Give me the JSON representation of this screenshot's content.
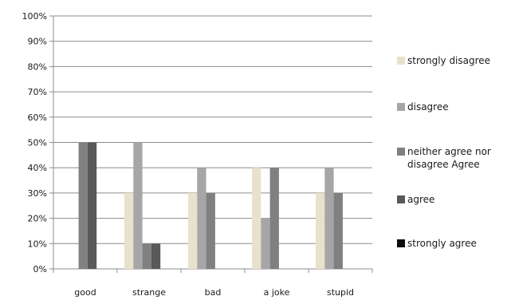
{
  "chart_data": {
    "type": "bar",
    "categories": [
      "good",
      "strange",
      "bad",
      "a joke",
      "stupid"
    ],
    "ylim": [
      0,
      100
    ],
    "yticks": [
      "0%",
      "10%",
      "20%",
      "30%",
      "40%",
      "50%",
      "60%",
      "70%",
      "80%",
      "90%",
      "100%"
    ],
    "grid": true,
    "legend_position": "right",
    "series": [
      {
        "name": "strongly disagree",
        "color": "#e8e2cc",
        "values": [
          0,
          30,
          30,
          40,
          30
        ]
      },
      {
        "name": "disagree",
        "color": "#a6a6a6",
        "values": [
          0,
          50,
          40,
          20,
          40
        ]
      },
      {
        "name": "neither agree nor disagree Agree",
        "color": "#808080",
        "values": [
          50,
          10,
          30,
          40,
          30
        ]
      },
      {
        "name": "agree",
        "color": "#595959",
        "values": [
          50,
          10,
          0,
          0,
          0
        ]
      },
      {
        "name": "strongly agree",
        "color": "#0d0d0d",
        "values": [
          0,
          0,
          0,
          0,
          0
        ]
      }
    ]
  }
}
